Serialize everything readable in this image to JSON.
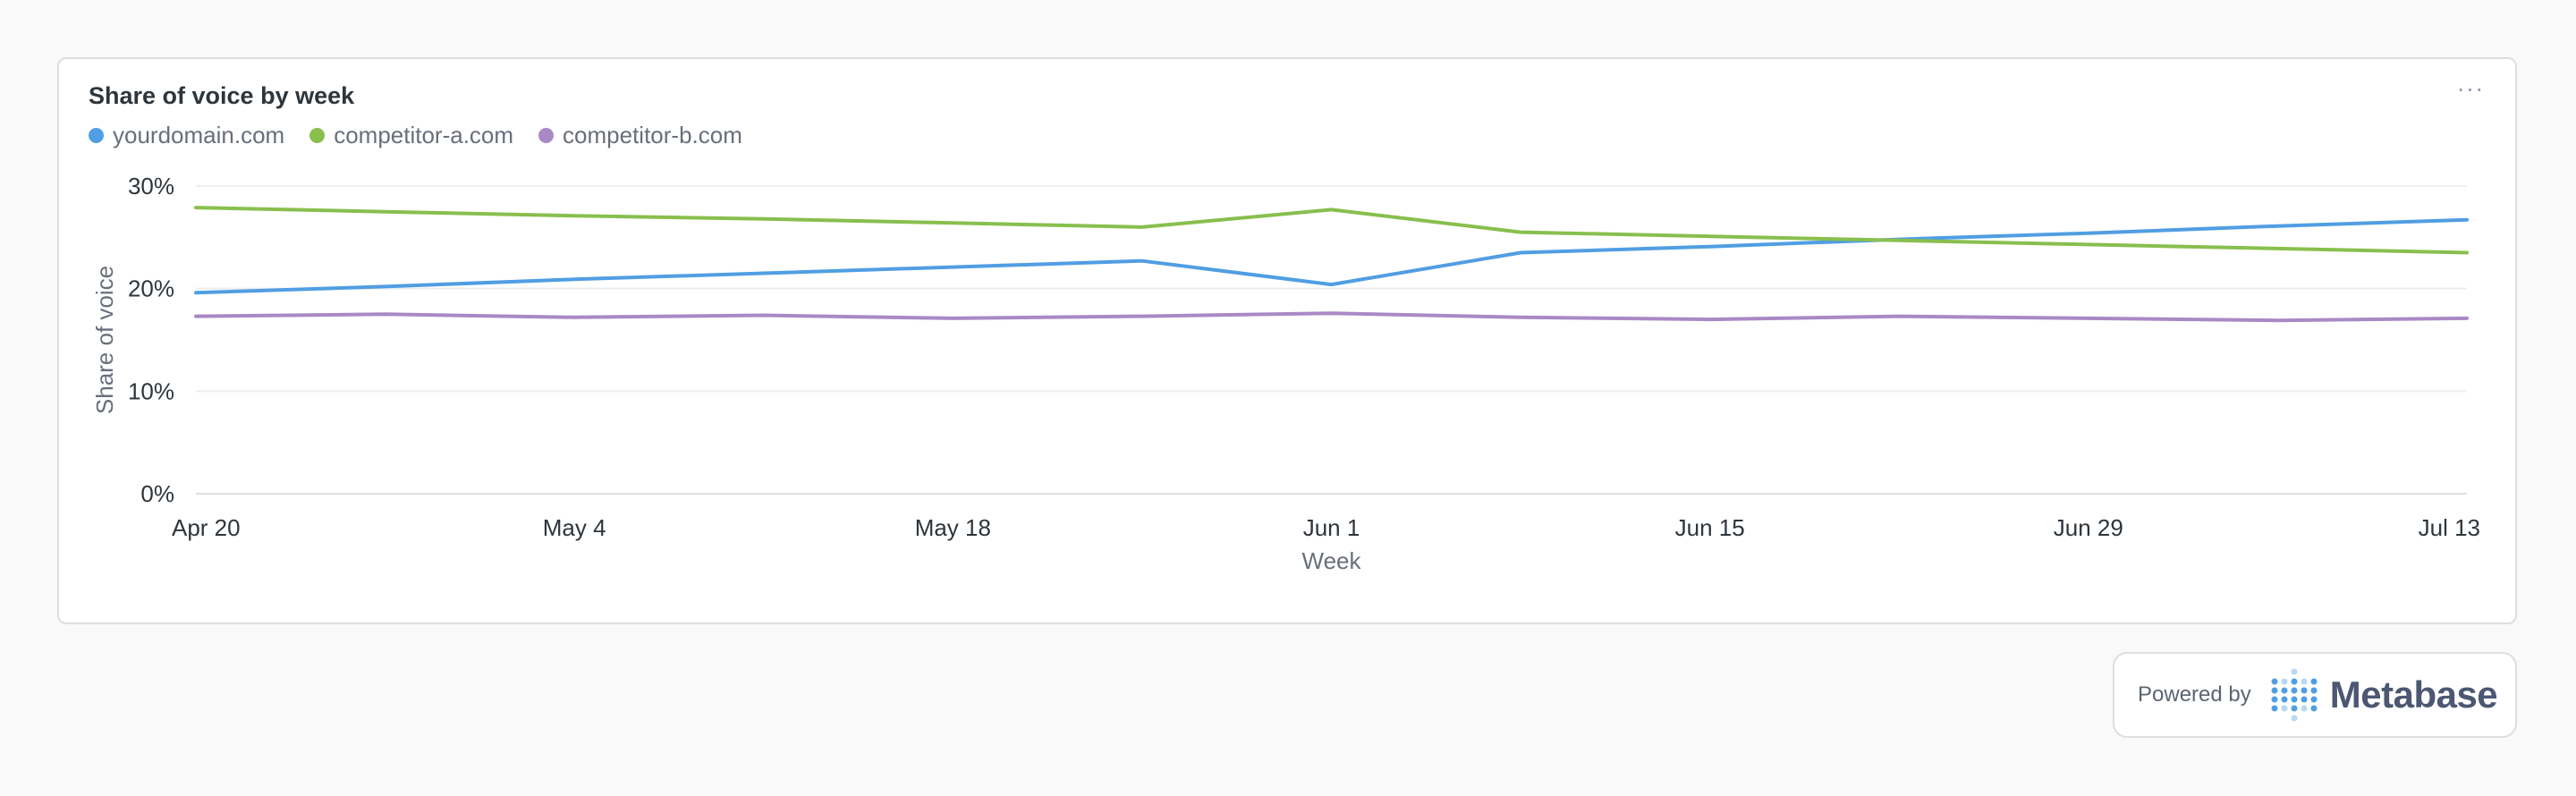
{
  "card": {
    "menu_label": "···"
  },
  "powered_by": {
    "label": "Powered by",
    "brand": "Metabase"
  },
  "chart_data": {
    "type": "line",
    "title": "Share of voice by week",
    "xlabel": "Week",
    "ylabel": "Share of voice",
    "ylim": [
      0,
      30
    ],
    "y_ticks": [
      "0%",
      "10%",
      "20%",
      "30%"
    ],
    "x_tick_labels": [
      "Apr 20",
      "May 4",
      "May 18",
      "Jun 1",
      "Jun 15",
      "Jun 29",
      "Jul 13"
    ],
    "x": [
      "Apr 20",
      "Apr 27",
      "May 4",
      "May 11",
      "May 18",
      "May 25",
      "Jun 1",
      "Jun 8",
      "Jun 15",
      "Jun 22",
      "Jun 29",
      "Jul 6",
      "Jul 13"
    ],
    "grid": true,
    "legend_position": "top-left",
    "series": [
      {
        "name": "yourdomain.com",
        "color": "#509ee3",
        "values": [
          19.6,
          20.2,
          20.9,
          21.5,
          22.1,
          22.7,
          20.4,
          23.5,
          24.1,
          24.8,
          25.4,
          26.1,
          26.7
        ]
      },
      {
        "name": "competitor-a.com",
        "color": "#88bf4d",
        "values": [
          27.9,
          27.5,
          27.1,
          26.8,
          26.4,
          26.0,
          27.7,
          25.5,
          25.1,
          24.7,
          24.3,
          23.9,
          23.5
        ]
      },
      {
        "name": "competitor-b.com",
        "color": "#a989c5",
        "values": [
          17.3,
          17.5,
          17.2,
          17.4,
          17.1,
          17.3,
          17.6,
          17.2,
          17.0,
          17.3,
          17.1,
          16.9,
          17.1
        ]
      }
    ]
  }
}
